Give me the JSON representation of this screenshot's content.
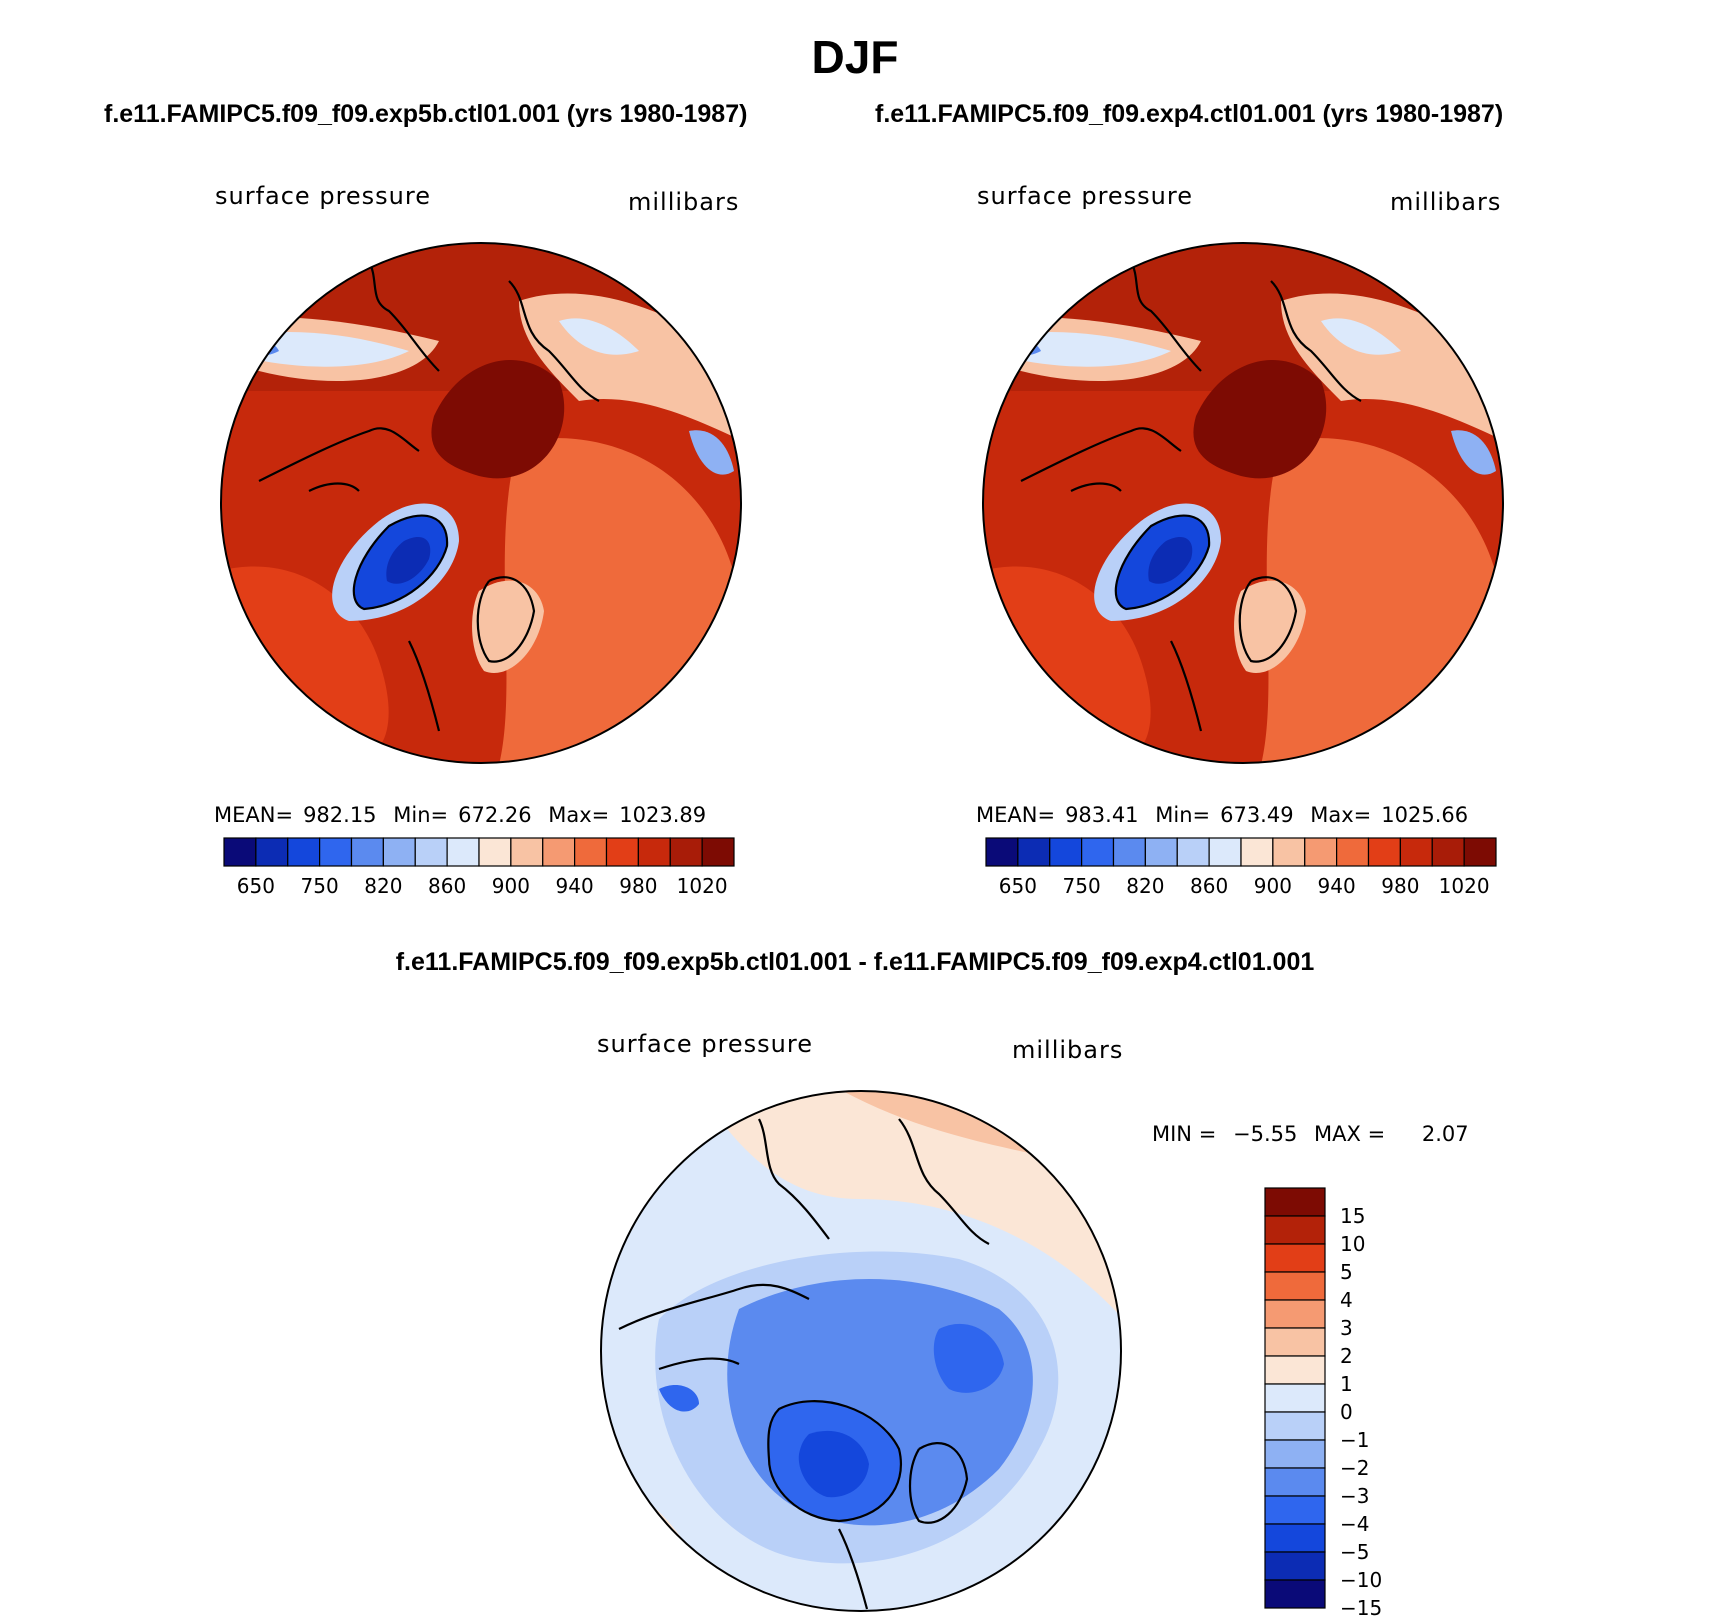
{
  "figure": {
    "season": "DJF",
    "left_case": "f.e11.FAMIPC5.f09_f09.exp5b.ctl01.001 (yrs 1980-1987)",
    "right_case": "f.e11.FAMIPC5.f09_f09.exp4.ctl01.001 (yrs 1980-1987)",
    "diff_title": "f.e11.FAMIPC5.f09_f09.exp5b.ctl01.001 - f.e11.FAMIPC5.f09_f09.exp4.ctl01.001"
  },
  "panels": [
    {
      "variable": "surface pressure",
      "units": "millibars",
      "mean_label": "MEAN=",
      "mean": "982.15",
      "min_label": "Min=",
      "min": "672.26",
      "max_label": "Max=",
      "max": "1023.89"
    },
    {
      "variable": "surface pressure",
      "units": "millibars",
      "mean_label": "MEAN=",
      "mean": "983.41",
      "min_label": "Min=",
      "min": "673.49",
      "max_label": "Max=",
      "max": "1025.66"
    },
    {
      "variable": "surface pressure",
      "units": "millibars",
      "min_label": "MIN =",
      "min": "−5.55",
      "max_label": "MAX =",
      "max": "2.07"
    }
  ],
  "colorbar_abs": {
    "colors": [
      "#0a0a78",
      "#0c2cb4",
      "#1447dc",
      "#2f66ee",
      "#5b8aef",
      "#8eb1f3",
      "#b9d0f8",
      "#dce9fb",
      "#fbe6d6",
      "#f8c3a4",
      "#f59a72",
      "#ef6a3b",
      "#e23e17",
      "#c7290c",
      "#a81c08",
      "#7d0b03"
    ],
    "tick_labels": [
      "650",
      "750",
      "820",
      "860",
      "900",
      "940",
      "980",
      "1020"
    ]
  },
  "colorbar_diff": {
    "colors": [
      "#7d0b03",
      "#b32209",
      "#e23e17",
      "#ef6a3b",
      "#f59a72",
      "#f8c3a4",
      "#fbe6d6",
      "#dce9fb",
      "#b9d0f8",
      "#8eb1f3",
      "#5b8aef",
      "#2f66ee",
      "#1447dc",
      "#0c2cb4",
      "#0a0a78"
    ],
    "tick_labels": [
      "15",
      "10",
      "5",
      "4",
      "3",
      "2",
      "1",
      "0",
      "−1",
      "−2",
      "−3",
      "−4",
      "−5",
      "−10",
      "−15"
    ]
  },
  "map_style": {
    "abs_background": "#b32209",
    "abs_high": "#7d0b03",
    "abs_low": "#1447dc",
    "diff_background": "#dce9fb",
    "diff_negative": "#5b8aef",
    "diff_positive": "#fbe6d6"
  }
}
